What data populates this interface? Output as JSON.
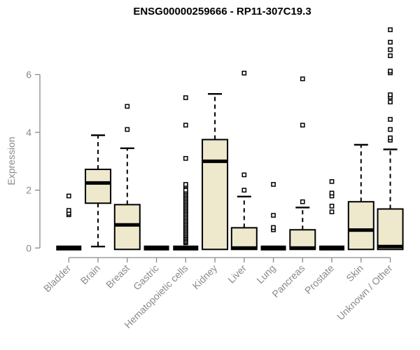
{
  "chart_data": {
    "type": "boxplot",
    "title": "ENSG00000259666 - RP11-307C19.3",
    "xlabel": "",
    "ylabel": "Expression",
    "ylim": [
      0,
      6
    ],
    "yticks": [
      0,
      2,
      4,
      6
    ],
    "grid": false,
    "legend": "none",
    "categories": [
      "Bladder",
      "Brain",
      "Breast",
      "Gastric",
      "Hematopoietic cells",
      "Kidney",
      "Liver",
      "Lung",
      "Pancreas",
      "Prostate",
      "Skin",
      "Unknown / Other"
    ],
    "boxes": [
      {
        "category": "Bladder",
        "q1": 0,
        "median": 0,
        "q3": 0,
        "whisker_low": 0,
        "whisker_high": 0,
        "outliers": [
          1.15,
          1.2,
          1.3,
          1.8
        ]
      },
      {
        "category": "Brain",
        "q1": 1.55,
        "median": 2.25,
        "q3": 2.72,
        "whisker_low": 0.05,
        "whisker_high": 3.9,
        "outliers": []
      },
      {
        "category": "Breast",
        "q1": 0,
        "median": 0.8,
        "q3": 1.5,
        "whisker_low": 0,
        "whisker_high": 3.45,
        "outliers": [
          4.1,
          4.9
        ]
      },
      {
        "category": "Gastric",
        "q1": 0,
        "median": 0,
        "q3": 0,
        "whisker_low": 0,
        "whisker_high": 0,
        "outliers": []
      },
      {
        "category": "Hematopoietic cells",
        "q1": 0,
        "median": 0,
        "q3": 0,
        "whisker_low": 0,
        "whisker_high": 0,
        "outliers": [
          0.18,
          0.22,
          0.27,
          0.32,
          0.36,
          0.41,
          0.45,
          0.5,
          0.55,
          0.6,
          0.65,
          0.7,
          0.75,
          0.8,
          0.85,
          0.9,
          0.95,
          1.0,
          1.05,
          1.1,
          1.15,
          1.2,
          1.25,
          1.3,
          1.35,
          1.4,
          1.45,
          1.5,
          1.55,
          1.6,
          1.65,
          1.7,
          1.75,
          1.8,
          1.85,
          1.9,
          1.95,
          2.0,
          2.15,
          2.2,
          3.1,
          4.25,
          5.2
        ]
      },
      {
        "category": "Kidney",
        "q1": 0,
        "median": 3.0,
        "q3": 3.75,
        "whisker_low": 0,
        "whisker_high": 5.33,
        "outliers": []
      },
      {
        "category": "Liver",
        "q1": 0,
        "median": 0,
        "q3": 0.7,
        "whisker_low": 0,
        "whisker_high": 1.78,
        "outliers": [
          2.0,
          2.53,
          6.05
        ]
      },
      {
        "category": "Lung",
        "q1": 0,
        "median": 0,
        "q3": 0,
        "whisker_low": 0,
        "whisker_high": 0,
        "outliers": [
          0.63,
          0.71,
          1.13,
          2.2
        ]
      },
      {
        "category": "Pancreas",
        "q1": 0,
        "median": 0,
        "q3": 0.63,
        "whisker_low": 0,
        "whisker_high": 1.4,
        "outliers": [
          1.6,
          4.25,
          5.85
        ]
      },
      {
        "category": "Prostate",
        "q1": 0,
        "median": 0,
        "q3": 0,
        "whisker_low": 0,
        "whisker_high": 0,
        "outliers": [
          1.25,
          1.45,
          1.8,
          1.9,
          2.3
        ]
      },
      {
        "category": "Skin",
        "q1": 0,
        "median": 0.62,
        "q3": 1.6,
        "whisker_low": 0,
        "whisker_high": 3.57,
        "outliers": []
      },
      {
        "category": "Unknown / Other",
        "q1": 0,
        "median": 0.05,
        "q3": 1.35,
        "whisker_low": 0,
        "whisker_high": 3.41,
        "outliers": [
          3.73,
          3.81,
          4.1,
          4.45,
          5.05,
          5.22,
          5.3,
          6.06,
          6.12,
          6.65,
          6.86,
          7.12,
          7.55
        ]
      }
    ],
    "colors": {
      "box_fill": "#EEE8CD",
      "box_border": "#000000",
      "median": "#000000",
      "outlier_fill": "#FFFFFF",
      "axis": "#8A8A8A",
      "axis_text": "#8A8A8A",
      "title": "#000000",
      "background": "#FFFFFF"
    }
  }
}
